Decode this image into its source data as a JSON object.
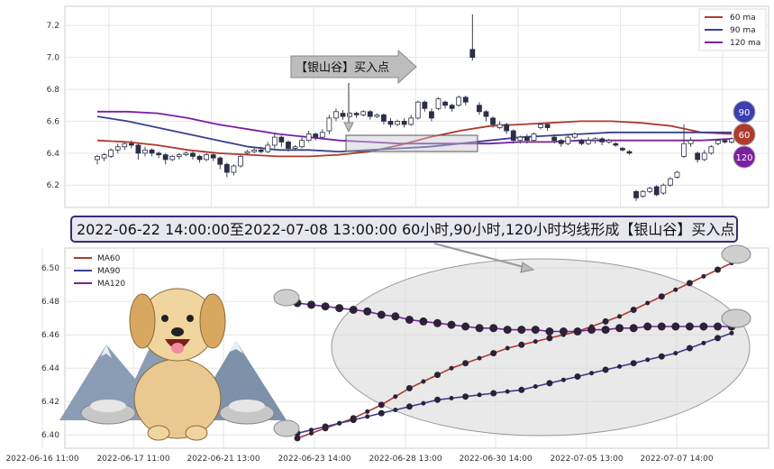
{
  "chart_data": [
    {
      "type": "candlestick",
      "ylim": [
        6.06,
        7.32
      ],
      "yticks": [
        6.2,
        6.4,
        6.6,
        6.8,
        7.0,
        7.2
      ],
      "candles": [
        [
          6.36,
          6.38,
          6.33,
          6.39
        ],
        [
          6.37,
          6.39,
          6.35,
          6.4
        ],
        [
          6.38,
          6.42,
          6.37,
          6.43
        ],
        [
          6.42,
          6.44,
          6.4,
          6.46
        ],
        [
          6.44,
          6.46,
          6.42,
          6.47
        ],
        [
          6.46,
          6.45,
          6.43,
          6.48
        ],
        [
          6.45,
          6.4,
          6.36,
          6.46
        ],
        [
          6.4,
          6.42,
          6.38,
          6.44
        ],
        [
          6.42,
          6.4,
          6.38,
          6.43
        ],
        [
          6.4,
          6.39,
          6.37,
          6.41
        ],
        [
          6.39,
          6.36,
          6.33,
          6.4
        ],
        [
          6.36,
          6.38,
          6.35,
          6.39
        ],
        [
          6.38,
          6.39,
          6.36,
          6.4
        ],
        [
          6.39,
          6.4,
          6.38,
          6.41
        ],
        [
          6.4,
          6.38,
          6.36,
          6.41
        ],
        [
          6.38,
          6.36,
          6.34,
          6.39
        ],
        [
          6.36,
          6.39,
          6.35,
          6.4
        ],
        [
          6.39,
          6.37,
          6.35,
          6.4
        ],
        [
          6.37,
          6.33,
          6.3,
          6.38
        ],
        [
          6.33,
          6.28,
          6.25,
          6.34
        ],
        [
          6.28,
          6.32,
          6.26,
          6.33
        ],
        [
          6.32,
          6.38,
          6.31,
          6.39
        ],
        [
          6.4,
          6.41,
          6.39,
          6.42
        ],
        [
          6.41,
          6.42,
          6.4,
          6.43
        ],
        [
          6.42,
          6.41,
          6.4,
          6.44
        ],
        [
          6.41,
          6.45,
          6.4,
          6.47
        ],
        [
          6.45,
          6.5,
          6.43,
          6.52
        ],
        [
          6.5,
          6.47,
          6.44,
          6.51
        ],
        [
          6.47,
          6.43,
          6.41,
          6.48
        ],
        [
          6.43,
          6.44,
          6.42,
          6.45
        ],
        [
          6.44,
          6.48,
          6.43,
          6.5
        ],
        [
          6.48,
          6.52,
          6.47,
          6.54
        ],
        [
          6.52,
          6.5,
          6.48,
          6.53
        ],
        [
          6.5,
          6.53,
          6.49,
          6.55
        ],
        [
          6.54,
          6.62,
          6.52,
          6.64
        ],
        [
          6.62,
          6.66,
          6.6,
          6.68
        ],
        [
          6.65,
          6.63,
          6.61,
          6.67
        ],
        [
          6.63,
          6.65,
          6.62,
          6.66
        ],
        [
          6.65,
          6.64,
          6.62,
          6.66
        ],
        [
          6.64,
          6.66,
          6.63,
          6.67
        ],
        [
          6.66,
          6.63,
          6.61,
          6.67
        ],
        [
          6.63,
          6.64,
          6.62,
          6.65
        ],
        [
          6.64,
          6.6,
          6.58,
          6.65
        ],
        [
          6.6,
          6.58,
          6.56,
          6.62
        ],
        [
          6.58,
          6.6,
          6.57,
          6.61
        ],
        [
          6.6,
          6.58,
          6.56,
          6.62
        ],
        [
          6.58,
          6.62,
          6.57,
          6.64
        ],
        [
          6.62,
          6.72,
          6.61,
          6.73
        ],
        [
          6.72,
          6.68,
          6.66,
          6.73
        ],
        [
          6.66,
          6.62,
          6.6,
          6.68
        ],
        [
          6.68,
          6.74,
          6.67,
          6.75
        ],
        [
          6.72,
          6.7,
          6.68,
          6.73
        ],
        [
          6.7,
          6.68,
          6.66,
          6.71
        ],
        [
          6.7,
          6.75,
          6.69,
          6.76
        ],
        [
          6.75,
          6.72,
          6.7,
          6.76
        ],
        [
          7.05,
          7.0,
          6.98,
          7.27
        ],
        [
          6.7,
          6.66,
          6.64,
          6.72
        ],
        [
          6.66,
          6.63,
          6.6,
          6.67
        ],
        [
          6.62,
          6.58,
          6.56,
          6.63
        ],
        [
          6.56,
          6.58,
          6.55,
          6.6
        ],
        [
          6.58,
          6.54,
          6.52,
          6.59
        ],
        [
          6.54,
          6.48,
          6.46,
          6.55
        ],
        [
          6.48,
          6.5,
          6.46,
          6.51
        ],
        [
          6.5,
          6.48,
          6.46,
          6.52
        ],
        [
          6.48,
          6.52,
          6.47,
          6.53
        ],
        [
          6.56,
          6.58,
          6.55,
          6.59
        ],
        [
          6.58,
          6.56,
          6.54,
          6.59
        ],
        [
          6.5,
          6.48,
          6.46,
          6.52
        ],
        [
          6.48,
          6.46,
          6.44,
          6.49
        ],
        [
          6.46,
          6.5,
          6.45,
          6.51
        ],
        [
          6.5,
          6.52,
          6.49,
          6.53
        ],
        [
          6.48,
          6.46,
          6.45,
          6.49
        ],
        [
          6.46,
          6.48,
          6.45,
          6.5
        ],
        [
          6.48,
          6.49,
          6.46,
          6.5
        ],
        [
          6.49,
          6.47,
          6.45,
          6.5
        ],
        [
          6.47,
          6.48,
          6.46,
          6.49
        ],
        [
          6.46,
          6.45,
          6.44,
          6.47
        ],
        [
          6.43,
          6.42,
          6.41,
          6.44
        ],
        [
          6.41,
          6.4,
          6.39,
          6.42
        ],
        [
          6.16,
          6.12,
          6.1,
          6.17
        ],
        [
          6.13,
          6.16,
          6.12,
          6.17
        ],
        [
          6.16,
          6.18,
          6.15,
          6.19
        ],
        [
          6.19,
          6.14,
          6.13,
          6.2
        ],
        [
          6.15,
          6.2,
          6.14,
          6.21
        ],
        [
          6.2,
          6.24,
          6.19,
          6.25
        ],
        [
          6.25,
          6.28,
          6.24,
          6.29
        ],
        [
          6.38,
          6.46,
          6.37,
          6.58
        ],
        [
          6.46,
          6.48,
          6.44,
          6.5
        ],
        [
          6.4,
          6.36,
          6.34,
          6.41
        ],
        [
          6.36,
          6.4,
          6.35,
          6.42
        ],
        [
          6.4,
          6.44,
          6.39,
          6.45
        ],
        [
          6.46,
          6.48,
          6.45,
          6.49
        ],
        [
          6.48,
          6.47,
          6.46,
          6.49
        ],
        [
          6.47,
          6.49,
          6.46,
          6.5
        ]
      ],
      "ma_series": [
        {
          "name": "60 ma",
          "color": "#b03a2e",
          "values": [
            6.48,
            6.47,
            6.45,
            6.42,
            6.4,
            6.39,
            6.38,
            6.38,
            6.39,
            6.41,
            6.45,
            6.5,
            6.54,
            6.57,
            6.58,
            6.59,
            6.6,
            6.6,
            6.59,
            6.57,
            6.53,
            6.52
          ]
        },
        {
          "name": "90 ma",
          "color": "#3b3f8f",
          "values": [
            6.63,
            6.6,
            6.56,
            6.52,
            6.48,
            6.44,
            6.42,
            6.42,
            6.41,
            6.42,
            6.43,
            6.44,
            6.46,
            6.48,
            6.5,
            6.51,
            6.52,
            6.53,
            6.53,
            6.53,
            6.53,
            6.53
          ]
        },
        {
          "name": "120 ma",
          "color": "#7b1fa2",
          "values": [
            6.66,
            6.66,
            6.65,
            6.62,
            6.58,
            6.55,
            6.52,
            6.5,
            6.48,
            6.47,
            6.46,
            6.46,
            6.46,
            6.46,
            6.47,
            6.47,
            6.48,
            6.48,
            6.48,
            6.48,
            6.48,
            6.49
          ]
        }
      ],
      "badges": [
        "90",
        "60",
        "120"
      ],
      "annotation": "【银山谷】买入点"
    },
    {
      "type": "line",
      "ylim": [
        6.392,
        6.512
      ],
      "yticks": [
        6.4,
        6.42,
        6.44,
        6.46,
        6.48,
        6.5
      ],
      "xtick_labels": [
        "2022-06-16 11:00",
        "2022-06-17 11:00",
        "2022-06-21 13:00",
        "2022-06-23 14:00",
        "2022-06-28 13:00",
        "2022-06-30 14:00",
        "2022-07-05 13:00",
        "2022-07-07 14:00"
      ],
      "series": [
        {
          "name": "MA60",
          "color": "#b03a2e",
          "values": [
            6.398,
            6.401,
            6.404,
            6.407,
            6.41,
            6.414,
            6.418,
            6.423,
            6.428,
            6.432,
            6.436,
            6.44,
            6.443,
            6.446,
            6.449,
            6.452,
            6.454,
            6.456,
            6.458,
            6.46,
            6.462,
            6.465,
            6.468,
            6.471,
            6.475,
            6.479,
            6.483,
            6.487,
            6.491,
            6.495,
            6.499,
            6.503
          ]
        },
        {
          "name": "MA90",
          "color": "#3b3f8f",
          "values": [
            6.401,
            6.403,
            6.405,
            6.407,
            6.409,
            6.411,
            6.413,
            6.415,
            6.417,
            6.419,
            6.421,
            6.422,
            6.423,
            6.424,
            6.425,
            6.426,
            6.427,
            6.429,
            6.431,
            6.433,
            6.435,
            6.437,
            6.439,
            6.441,
            6.443,
            6.445,
            6.447,
            6.449,
            6.452,
            6.455,
            6.458,
            6.461
          ]
        },
        {
          "name": "MA120",
          "color": "#7b1fa2",
          "values": [
            6.479,
            6.478,
            6.477,
            6.476,
            6.475,
            6.474,
            6.472,
            6.471,
            6.469,
            6.468,
            6.467,
            6.466,
            6.465,
            6.464,
            6.464,
            6.463,
            6.463,
            6.463,
            6.462,
            6.462,
            6.462,
            6.463,
            6.463,
            6.464,
            6.464,
            6.465,
            6.465,
            6.465,
            6.465,
            6.465,
            6.465,
            6.465
          ]
        }
      ],
      "banner": "2022-06-22 14:00:00至2022-07-08 13:00:00 60小时,90小时,120小时均线形成【银山谷】买入点"
    }
  ]
}
